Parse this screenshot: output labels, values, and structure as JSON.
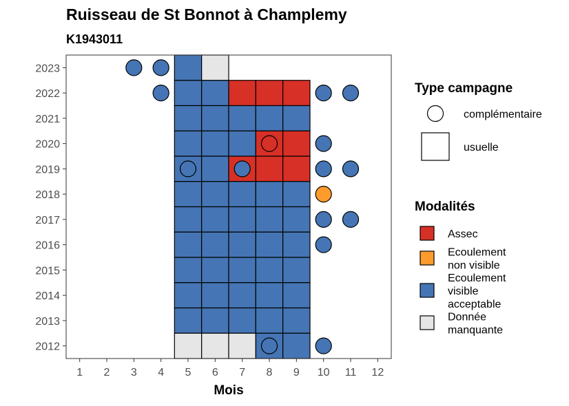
{
  "chart_data": {
    "type": "heatmap",
    "title": "Ruisseau de St Bonnot à Champlemy",
    "subtitle": "K1943011",
    "xlabel": "Mois",
    "ylabel": "",
    "x_ticks": [
      "1",
      "2",
      "3",
      "4",
      "5",
      "6",
      "7",
      "8",
      "9",
      "10",
      "11",
      "12"
    ],
    "y_ticks": [
      "2012",
      "2013",
      "2014",
      "2015",
      "2016",
      "2017",
      "2018",
      "2019",
      "2020",
      "2021",
      "2022",
      "2023"
    ],
    "xlim": [
      0.5,
      12.5
    ],
    "ylim": [
      2011.5,
      2023.5
    ],
    "legend_shape_title": "Type campagne",
    "legend_shape_items": [
      {
        "key": "complementaire",
        "label": "complémentaire",
        "shape": "circle"
      },
      {
        "key": "usuelle",
        "label": "usuelle",
        "shape": "square"
      }
    ],
    "legend_color_title": "Modalités",
    "legend_color_items": [
      {
        "key": "assec",
        "label": "Assec",
        "color": "#d73027"
      },
      {
        "key": "nonvisible",
        "label": "Ecoulement non visible",
        "color": "#fd9b2c"
      },
      {
        "key": "acceptable",
        "label": "Ecoulement visible acceptable",
        "color": "#4575b4"
      },
      {
        "key": "manquante",
        "label": "Donnée manquante",
        "color": "#e6e6e6"
      }
    ],
    "usuelle": [
      {
        "year": 2023,
        "month": 5,
        "status": "acceptable"
      },
      {
        "year": 2023,
        "month": 6,
        "status": "manquante"
      },
      {
        "year": 2022,
        "month": 5,
        "status": "acceptable"
      },
      {
        "year": 2022,
        "month": 6,
        "status": "acceptable"
      },
      {
        "year": 2022,
        "month": 7,
        "status": "assec"
      },
      {
        "year": 2022,
        "month": 8,
        "status": "assec"
      },
      {
        "year": 2022,
        "month": 9,
        "status": "assec"
      },
      {
        "year": 2021,
        "month": 5,
        "status": "acceptable"
      },
      {
        "year": 2021,
        "month": 6,
        "status": "acceptable"
      },
      {
        "year": 2021,
        "month": 7,
        "status": "acceptable"
      },
      {
        "year": 2021,
        "month": 8,
        "status": "acceptable"
      },
      {
        "year": 2021,
        "month": 9,
        "status": "acceptable"
      },
      {
        "year": 2020,
        "month": 5,
        "status": "acceptable"
      },
      {
        "year": 2020,
        "month": 6,
        "status": "acceptable"
      },
      {
        "year": 2020,
        "month": 7,
        "status": "acceptable"
      },
      {
        "year": 2020,
        "month": 8,
        "status": "assec"
      },
      {
        "year": 2020,
        "month": 9,
        "status": "assec"
      },
      {
        "year": 2019,
        "month": 5,
        "status": "acceptable"
      },
      {
        "year": 2019,
        "month": 6,
        "status": "acceptable"
      },
      {
        "year": 2019,
        "month": 7,
        "status": "assec"
      },
      {
        "year": 2019,
        "month": 8,
        "status": "assec"
      },
      {
        "year": 2019,
        "month": 9,
        "status": "assec"
      },
      {
        "year": 2018,
        "month": 5,
        "status": "acceptable"
      },
      {
        "year": 2018,
        "month": 6,
        "status": "acceptable"
      },
      {
        "year": 2018,
        "month": 7,
        "status": "acceptable"
      },
      {
        "year": 2018,
        "month": 8,
        "status": "acceptable"
      },
      {
        "year": 2018,
        "month": 9,
        "status": "acceptable"
      },
      {
        "year": 2017,
        "month": 5,
        "status": "acceptable"
      },
      {
        "year": 2017,
        "month": 6,
        "status": "acceptable"
      },
      {
        "year": 2017,
        "month": 7,
        "status": "acceptable"
      },
      {
        "year": 2017,
        "month": 8,
        "status": "acceptable"
      },
      {
        "year": 2017,
        "month": 9,
        "status": "acceptable"
      },
      {
        "year": 2016,
        "month": 5,
        "status": "acceptable"
      },
      {
        "year": 2016,
        "month": 6,
        "status": "acceptable"
      },
      {
        "year": 2016,
        "month": 7,
        "status": "acceptable"
      },
      {
        "year": 2016,
        "month": 8,
        "status": "acceptable"
      },
      {
        "year": 2016,
        "month": 9,
        "status": "acceptable"
      },
      {
        "year": 2015,
        "month": 5,
        "status": "acceptable"
      },
      {
        "year": 2015,
        "month": 6,
        "status": "acceptable"
      },
      {
        "year": 2015,
        "month": 7,
        "status": "acceptable"
      },
      {
        "year": 2015,
        "month": 8,
        "status": "acceptable"
      },
      {
        "year": 2015,
        "month": 9,
        "status": "acceptable"
      },
      {
        "year": 2014,
        "month": 5,
        "status": "acceptable"
      },
      {
        "year": 2014,
        "month": 6,
        "status": "acceptable"
      },
      {
        "year": 2014,
        "month": 7,
        "status": "acceptable"
      },
      {
        "year": 2014,
        "month": 8,
        "status": "acceptable"
      },
      {
        "year": 2014,
        "month": 9,
        "status": "acceptable"
      },
      {
        "year": 2013,
        "month": 5,
        "status": "acceptable"
      },
      {
        "year": 2013,
        "month": 6,
        "status": "acceptable"
      },
      {
        "year": 2013,
        "month": 7,
        "status": "acceptable"
      },
      {
        "year": 2013,
        "month": 8,
        "status": "acceptable"
      },
      {
        "year": 2013,
        "month": 9,
        "status": "acceptable"
      },
      {
        "year": 2012,
        "month": 5,
        "status": "manquante"
      },
      {
        "year": 2012,
        "month": 6,
        "status": "manquante"
      },
      {
        "year": 2012,
        "month": 7,
        "status": "manquante"
      },
      {
        "year": 2012,
        "month": 8,
        "status": "acceptable"
      },
      {
        "year": 2012,
        "month": 9,
        "status": "acceptable"
      }
    ],
    "complementaire": [
      {
        "year": 2023,
        "month": 3,
        "status": "acceptable"
      },
      {
        "year": 2023,
        "month": 4,
        "status": "acceptable"
      },
      {
        "year": 2022,
        "month": 4,
        "status": "acceptable"
      },
      {
        "year": 2022,
        "month": 10,
        "status": "acceptable"
      },
      {
        "year": 2022,
        "month": 11,
        "status": "acceptable"
      },
      {
        "year": 2020,
        "month": 8,
        "status": "assec"
      },
      {
        "year": 2020,
        "month": 10,
        "status": "acceptable"
      },
      {
        "year": 2019,
        "month": 5,
        "status": "acceptable"
      },
      {
        "year": 2019,
        "month": 7,
        "status": "acceptable"
      },
      {
        "year": 2019,
        "month": 10,
        "status": "acceptable"
      },
      {
        "year": 2019,
        "month": 11,
        "status": "acceptable"
      },
      {
        "year": 2018,
        "month": 10,
        "status": "nonvisible"
      },
      {
        "year": 2017,
        "month": 10,
        "status": "acceptable"
      },
      {
        "year": 2017,
        "month": 11,
        "status": "acceptable"
      },
      {
        "year": 2016,
        "month": 10,
        "status": "acceptable"
      },
      {
        "year": 2012,
        "month": 8,
        "status": "acceptable"
      },
      {
        "year": 2012,
        "month": 10,
        "status": "acceptable"
      }
    ]
  }
}
